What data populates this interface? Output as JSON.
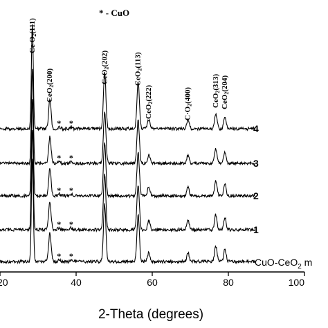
{
  "chart_data": {
    "type": "line",
    "xlabel": "2-Theta (degrees)",
    "xlim": [
      20,
      100
    ],
    "xticks": [
      "20",
      "40",
      "60",
      "80",
      "100"
    ],
    "legend_note": "* - CuO",
    "peaks": [
      {
        "pos": 28.5,
        "label": "Ce O2(111)",
        "height": 1.0
      },
      {
        "pos": 33.1,
        "label": "CeO2(200)",
        "height": 0.28
      },
      {
        "pos": 47.5,
        "label": "CeO2(202)",
        "height": 0.55
      },
      {
        "pos": 56.3,
        "label": "CeO2(113)",
        "height": 0.45
      },
      {
        "pos": 59.1,
        "label": "CeO2(222)",
        "height": 0.09
      },
      {
        "pos": 69.4,
        "label": "C·O2(400)",
        "height": 0.09
      },
      {
        "pos": 76.7,
        "label": "CeO2(313)",
        "height": 0.15
      },
      {
        "pos": 79.1,
        "label": "CeO2(204)",
        "height": 0.12
      }
    ],
    "cuo_peaks": [
      35.5,
      38.7
    ],
    "series": [
      {
        "name": "4",
        "label_style": "bold"
      },
      {
        "name": "3",
        "label_style": "bold"
      },
      {
        "name": "2",
        "label_style": "bold"
      },
      {
        "name": "1",
        "label_style": "bold"
      },
      {
        "name": "CuO-CeO2 m",
        "label_style": "plain"
      }
    ]
  }
}
